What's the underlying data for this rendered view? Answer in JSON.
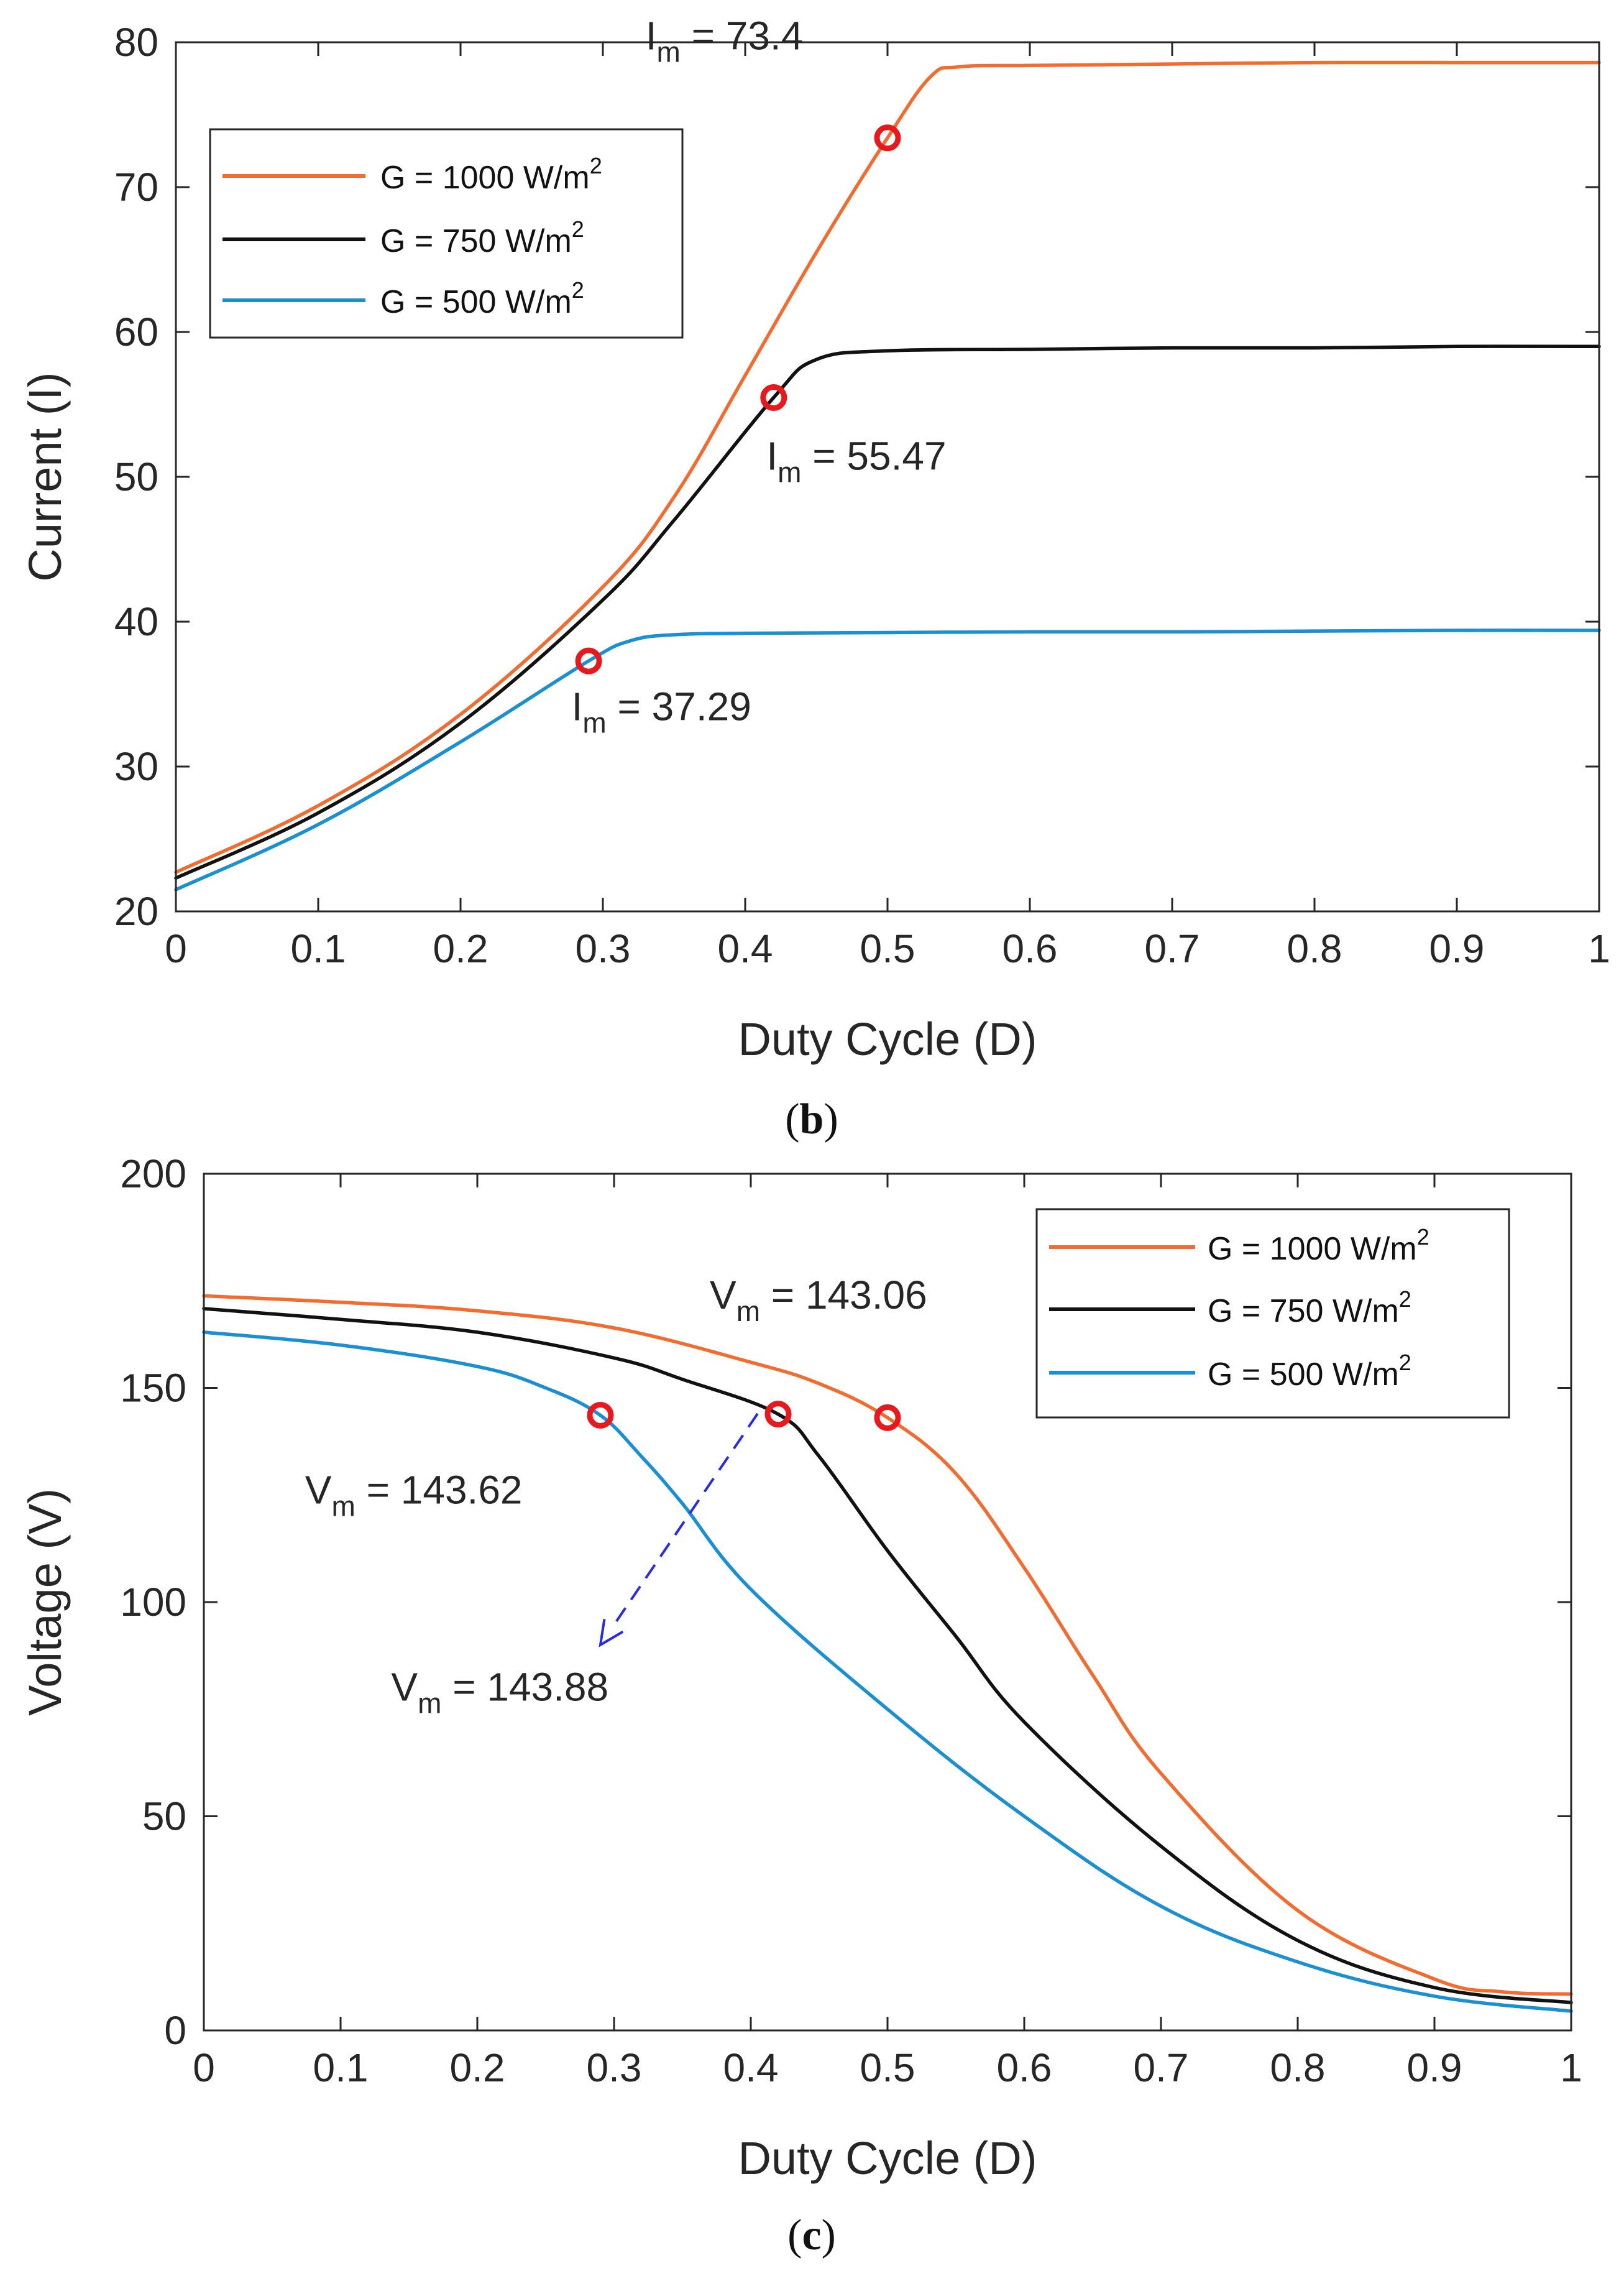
{
  "colors": {
    "orange": "#f26b2f",
    "black": "#111111",
    "blue": "#1a8fd1",
    "marker": "#e8191d",
    "arrow": "#2929e6",
    "axis": "#262626"
  },
  "chart_data": [
    {
      "type": "line",
      "panel": "b",
      "caption": {
        "open": "(",
        "letter": "b",
        "close": ")"
      },
      "xlabel": "Duty Cycle (D)",
      "ylabel": "Current (I)",
      "xlim": [
        0,
        1
      ],
      "ylim": [
        20,
        80
      ],
      "xticks": [
        "0",
        "0.1",
        "0.2",
        "0.3",
        "0.4",
        "0.5",
        "0.6",
        "0.7",
        "0.8",
        "0.9",
        "1"
      ],
      "yticks": [
        "20",
        "30",
        "40",
        "50",
        "60",
        "70",
        "80"
      ],
      "legend_position": "upper-left",
      "series": [
        {
          "name": "G = 1000 W/m2",
          "label_main": "G = 1000 W/m",
          "label_sup": "2",
          "color": "#f26b2f",
          "x": [
            0,
            0.1,
            0.2,
            0.3,
            0.35,
            0.4,
            0.45,
            0.5,
            0.53,
            0.55,
            0.6,
            0.7,
            0.8,
            0.9,
            1
          ],
          "y": [
            22.7,
            27.3,
            33.6,
            42.4,
            48.6,
            57.0,
            65.5,
            73.4,
            77.6,
            78.3,
            78.4,
            78.5,
            78.6,
            78.6,
            78.6
          ]
        },
        {
          "name": "G = 750 W/m2",
          "label_main": "G = 750 W/m",
          "label_sup": "2",
          "color": "#111111",
          "x": [
            0,
            0.1,
            0.2,
            0.3,
            0.35,
            0.42,
            0.45,
            0.5,
            0.6,
            0.7,
            0.8,
            0.9,
            1
          ],
          "y": [
            22.3,
            26.8,
            33.0,
            41.5,
            47.0,
            55.47,
            58.1,
            58.7,
            58.8,
            58.9,
            58.9,
            59.0,
            59.0
          ]
        },
        {
          "name": "G = 500 W/m2",
          "label_main": "G = 500 W/m",
          "label_sup": "2",
          "color": "#1a8fd1",
          "x": [
            0,
            0.1,
            0.2,
            0.29,
            0.32,
            0.35,
            0.4,
            0.5,
            0.6,
            0.7,
            0.8,
            0.9,
            1
          ],
          "y": [
            21.5,
            26.0,
            31.7,
            37.29,
            38.7,
            39.1,
            39.2,
            39.25,
            39.3,
            39.3,
            39.35,
            39.4,
            39.4
          ]
        }
      ],
      "markers": [
        {
          "x": 0.5,
          "y": 73.4,
          "series": "G = 1000 W/m2"
        },
        {
          "x": 0.42,
          "y": 55.47,
          "series": "G = 750 W/m2"
        },
        {
          "x": 0.29,
          "y": 37.29,
          "series": "G = 500 W/m2"
        }
      ],
      "annotations": [
        {
          "main": "I",
          "sub": "m",
          "value": " = 73.4",
          "x": 0.33,
          "y": 79.5
        },
        {
          "main": "I",
          "sub": "m",
          "value": " = 55.47",
          "x": 0.415,
          "y": 50.5
        },
        {
          "main": "I",
          "sub": "m",
          "value": " = 37.29",
          "x": 0.278,
          "y": 33.2
        }
      ]
    },
    {
      "type": "line",
      "panel": "c",
      "caption": {
        "open": "(",
        "letter": "c",
        "close": ")"
      },
      "xlabel": "Duty Cycle (D)",
      "ylabel": "Voltage (V)",
      "xlim": [
        0,
        1
      ],
      "ylim": [
        0,
        200
      ],
      "xticks": [
        "0",
        "0.1",
        "0.2",
        "0.3",
        "0.4",
        "0.5",
        "0.6",
        "0.7",
        "0.8",
        "0.9",
        "1"
      ],
      "yticks": [
        "0",
        "50",
        "100",
        "150",
        "200"
      ],
      "legend_position": "upper-right",
      "series": [
        {
          "name": "G = 1000 W/m2",
          "label_main": "G = 1000 W/m",
          "label_sup": "2",
          "color": "#f26b2f",
          "x": [
            0,
            0.1,
            0.2,
            0.3,
            0.4,
            0.45,
            0.5,
            0.55,
            0.6,
            0.65,
            0.7,
            0.8,
            0.9,
            0.95,
            1
          ],
          "y": [
            171.5,
            170,
            168,
            164,
            156,
            151,
            143.06,
            130,
            108,
            83,
            60,
            28,
            12,
            9,
            8.5
          ]
        },
        {
          "name": "G = 750 W/m2",
          "label_main": "G = 750 W/m",
          "label_sup": "2",
          "color": "#111111",
          "x": [
            0,
            0.1,
            0.2,
            0.3,
            0.35,
            0.42,
            0.45,
            0.5,
            0.55,
            0.6,
            0.7,
            0.8,
            0.9,
            1
          ],
          "y": [
            168.5,
            166,
            163,
            157,
            152,
            143.88,
            134,
            112,
            92,
            72,
            43,
            21,
            10,
            6.5
          ]
        },
        {
          "name": "G = 500 W/m2",
          "label_main": "G = 500 W/m",
          "label_sup": "2",
          "color": "#1a8fd1",
          "x": [
            0,
            0.1,
            0.2,
            0.25,
            0.29,
            0.32,
            0.35,
            0.4,
            0.5,
            0.6,
            0.7,
            0.8,
            0.9,
            1
          ],
          "y": [
            163,
            160,
            155,
            150,
            143.62,
            134,
            123,
            103,
            75,
            50,
            29,
            16,
            8,
            4.5
          ]
        }
      ],
      "markers": [
        {
          "x": 0.29,
          "y": 143.62,
          "series": "G = 500 W/m2"
        },
        {
          "x": 0.42,
          "y": 143.88,
          "series": "G = 750 W/m2"
        },
        {
          "x": 0.5,
          "y": 143.06,
          "series": "G = 1000 W/m2"
        }
      ],
      "annotations": [
        {
          "main": "V",
          "sub": "m",
          "value": " = 143.06",
          "x": 0.37,
          "y": 168.5
        },
        {
          "main": "V",
          "sub": "m",
          "value": " = 143.62",
          "x": 0.074,
          "y": 123
        },
        {
          "main": "V",
          "sub": "m",
          "value": " = 143.88",
          "x": 0.137,
          "y": 77
        }
      ],
      "arrow": {
        "from": [
          0.405,
          144
        ],
        "to": [
          0.29,
          90
        ],
        "style": "dashed"
      }
    }
  ]
}
